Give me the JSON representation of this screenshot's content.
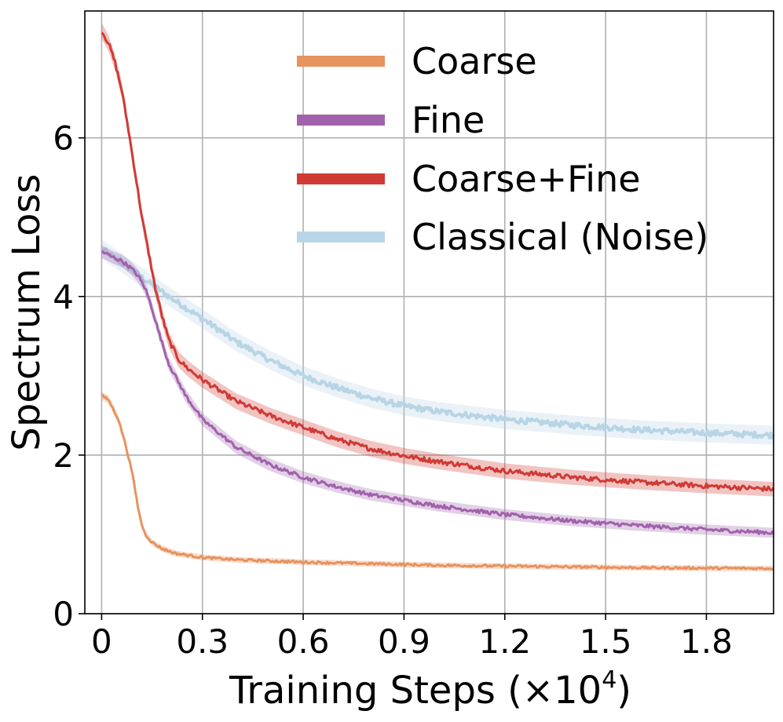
{
  "chart_data": {
    "type": "line",
    "title": "",
    "xlabel": "Training Steps (×10",
    "xlabel_exp": "4",
    "xlabel_close": ")",
    "ylabel": "Spectrum Loss",
    "xlim": [
      -0.05,
      2.0
    ],
    "ylim": [
      0,
      7.6
    ],
    "xticks": [
      0,
      0.3,
      0.6,
      0.9,
      1.2,
      1.5,
      1.8
    ],
    "xtick_labels": [
      "0",
      "0.3",
      "0.6",
      "0.9",
      "1.2",
      "1.5",
      "1.8"
    ],
    "yticks": [
      0,
      2,
      4,
      6
    ],
    "ytick_labels": [
      "0",
      "2",
      "4",
      "6"
    ],
    "grid": true,
    "legend_location": "top-right",
    "series": [
      {
        "name": "Coarse",
        "color": "#E8925E",
        "band": 0.05,
        "x": [
          0,
          0.02,
          0.05,
          0.07,
          0.09,
          0.1,
          0.11,
          0.12,
          0.13,
          0.15,
          0.18,
          0.22,
          0.3,
          0.4,
          0.6,
          0.8,
          1.0,
          1.2,
          1.4,
          1.6,
          1.8,
          2.0
        ],
        "y": [
          2.75,
          2.7,
          2.45,
          2.15,
          1.8,
          1.55,
          1.3,
          1.12,
          1.0,
          0.9,
          0.82,
          0.76,
          0.71,
          0.68,
          0.65,
          0.63,
          0.61,
          0.6,
          0.59,
          0.58,
          0.575,
          0.57
        ]
      },
      {
        "name": "Fine",
        "color": "#A062AB",
        "band": 0.08,
        "x": [
          0,
          0.03,
          0.06,
          0.09,
          0.11,
          0.13,
          0.15,
          0.17,
          0.2,
          0.25,
          0.3,
          0.4,
          0.5,
          0.6,
          0.7,
          0.8,
          0.9,
          1.0,
          1.2,
          1.4,
          1.6,
          1.8,
          2.0
        ],
        "y": [
          4.57,
          4.5,
          4.45,
          4.35,
          4.25,
          4.1,
          3.85,
          3.55,
          3.15,
          2.75,
          2.45,
          2.1,
          1.88,
          1.72,
          1.6,
          1.5,
          1.43,
          1.36,
          1.25,
          1.17,
          1.11,
          1.06,
          1.02
        ]
      },
      {
        "name": "Coarse+Fine",
        "color": "#D03A35",
        "band": 0.1,
        "x": [
          0,
          0.02,
          0.04,
          0.06,
          0.08,
          0.1,
          0.12,
          0.14,
          0.16,
          0.18,
          0.2,
          0.23,
          0.26,
          0.3,
          0.4,
          0.5,
          0.6,
          0.7,
          0.8,
          0.9,
          1.0,
          1.2,
          1.4,
          1.6,
          1.8,
          2.0
        ],
        "y": [
          7.35,
          7.2,
          6.95,
          6.6,
          6.1,
          5.55,
          5.0,
          4.55,
          4.1,
          3.75,
          3.45,
          3.2,
          3.08,
          2.95,
          2.68,
          2.5,
          2.35,
          2.2,
          2.08,
          1.99,
          1.92,
          1.8,
          1.72,
          1.66,
          1.61,
          1.57
        ]
      },
      {
        "name": "Classical (Noise)",
        "color": "#B8D5E5",
        "band": 0.12,
        "x": [
          0,
          0.05,
          0.1,
          0.15,
          0.2,
          0.3,
          0.4,
          0.5,
          0.6,
          0.7,
          0.8,
          0.9,
          1.0,
          1.2,
          1.4,
          1.6,
          1.8,
          2.0
        ],
        "y": [
          4.6,
          4.45,
          4.3,
          4.15,
          4.0,
          3.72,
          3.43,
          3.2,
          3.0,
          2.85,
          2.72,
          2.62,
          2.55,
          2.45,
          2.38,
          2.32,
          2.28,
          2.25
        ]
      }
    ]
  }
}
